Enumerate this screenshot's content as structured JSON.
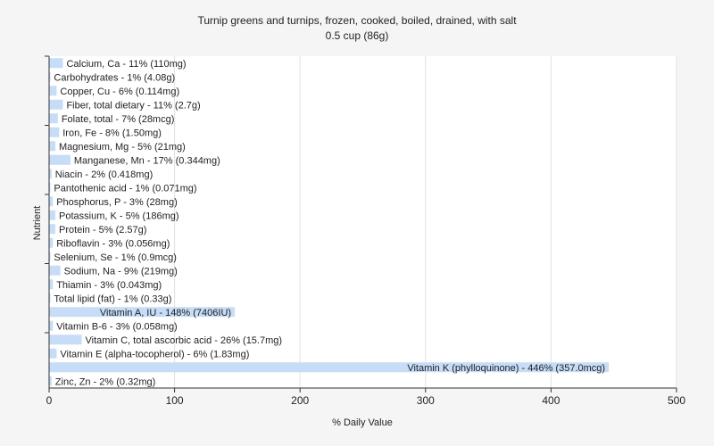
{
  "chart_data": {
    "type": "bar",
    "orientation": "horizontal",
    "title": "Turnip greens and turnips, frozen, cooked, boiled, drained, with salt",
    "subtitle": "0.5 cup (86g)",
    "xlabel": "% Daily Value",
    "ylabel": "Nutrient",
    "xlim": [
      0,
      500
    ],
    "xticks": [
      0,
      100,
      200,
      300,
      400,
      500
    ],
    "grid": true,
    "bar_color": "#c6dcf7",
    "bars": [
      {
        "label": "Calcium, Ca - 11% (110mg)",
        "value": 11
      },
      {
        "label": "Carbohydrates - 1% (4.08g)",
        "value": 1
      },
      {
        "label": "Copper, Cu - 6% (0.114mg)",
        "value": 6
      },
      {
        "label": "Fiber, total dietary - 11% (2.7g)",
        "value": 11
      },
      {
        "label": "Folate, total - 7% (28mcg)",
        "value": 7
      },
      {
        "label": "Iron, Fe - 8% (1.50mg)",
        "value": 8
      },
      {
        "label": "Magnesium, Mg - 5% (21mg)",
        "value": 5
      },
      {
        "label": "Manganese, Mn - 17% (0.344mg)",
        "value": 17
      },
      {
        "label": "Niacin - 2% (0.418mg)",
        "value": 2
      },
      {
        "label": "Pantothenic acid - 1% (0.071mg)",
        "value": 1
      },
      {
        "label": "Phosphorus, P - 3% (28mg)",
        "value": 3
      },
      {
        "label": "Potassium, K - 5% (186mg)",
        "value": 5
      },
      {
        "label": "Protein - 5% (2.57g)",
        "value": 5
      },
      {
        "label": "Riboflavin - 3% (0.056mg)",
        "value": 3
      },
      {
        "label": "Selenium, Se - 1% (0.9mcg)",
        "value": 1
      },
      {
        "label": "Sodium, Na - 9% (219mg)",
        "value": 9
      },
      {
        "label": "Thiamin - 3% (0.043mg)",
        "value": 3
      },
      {
        "label": "Total lipid (fat) - 1% (0.33g)",
        "value": 1
      },
      {
        "label": "Vitamin A, IU - 148% (7406IU)",
        "value": 148
      },
      {
        "label": "Vitamin B-6 - 3% (0.058mg)",
        "value": 3
      },
      {
        "label": "Vitamin C, total ascorbic acid - 26% (15.7mg)",
        "value": 26
      },
      {
        "label": "Vitamin E (alpha-tocopherol) - 6% (1.83mg)",
        "value": 6
      },
      {
        "label": "Vitamin K (phylloquinone) - 446% (357.0mcg)",
        "value": 446
      },
      {
        "label": "Zinc, Zn - 2% (0.32mg)",
        "value": 2
      }
    ]
  }
}
